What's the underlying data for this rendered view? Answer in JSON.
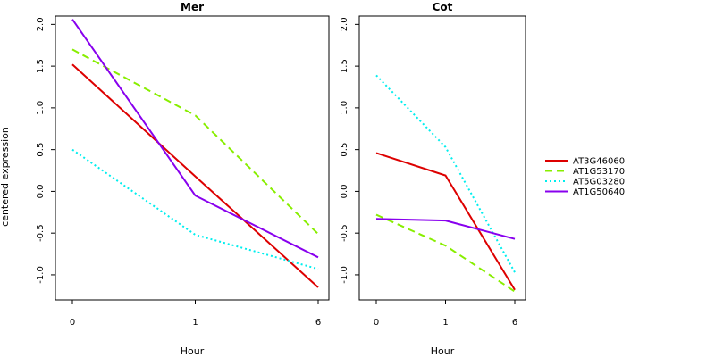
{
  "chart_data": [
    {
      "type": "line",
      "title": "Mer",
      "xlabel": "Hour",
      "ylabel": "centered expression",
      "categories": [
        "0",
        "1",
        "6"
      ],
      "yticks": [
        "-1.0",
        "-0.5",
        "0.0",
        "0.5",
        "1.0",
        "1.5",
        "2.0"
      ],
      "ylim": [
        -1.3,
        2.1
      ],
      "grid": false,
      "series": [
        {
          "name": "AT3G46060",
          "color": "#dd0000",
          "dash": "solid",
          "values": [
            1.52,
            0.18,
            -1.15
          ]
        },
        {
          "name": "AT1G53170",
          "color": "#88ee00",
          "dash": "dashed",
          "values": [
            1.7,
            0.91,
            -0.51
          ]
        },
        {
          "name": "AT5G03280",
          "color": "#00eeee",
          "dash": "dotted",
          "values": [
            0.5,
            -0.52,
            -0.93
          ]
        },
        {
          "name": "AT1G50640",
          "color": "#8800ee",
          "dash": "solid",
          "values": [
            2.06,
            -0.05,
            -0.79
          ]
        }
      ]
    },
    {
      "type": "line",
      "title": "Cot",
      "xlabel": "Hour",
      "ylabel": "",
      "categories": [
        "0",
        "1",
        "6"
      ],
      "yticks": [
        "-1.0",
        "-0.5",
        "0.0",
        "0.5",
        "1.0",
        "1.5",
        "2.0"
      ],
      "ylim": [
        -1.3,
        2.1
      ],
      "grid": false,
      "series": [
        {
          "name": "AT3G46060",
          "color": "#dd0000",
          "dash": "solid",
          "values": [
            0.46,
            0.19,
            -1.18
          ]
        },
        {
          "name": "AT1G53170",
          "color": "#88ee00",
          "dash": "dashed",
          "values": [
            -0.28,
            -0.65,
            -1.2
          ]
        },
        {
          "name": "AT5G03280",
          "color": "#00eeee",
          "dash": "dotted",
          "values": [
            1.39,
            0.53,
            -0.97
          ]
        },
        {
          "name": "AT1G50640",
          "color": "#8800ee",
          "dash": "solid",
          "values": [
            -0.33,
            -0.35,
            -0.57
          ]
        }
      ]
    }
  ],
  "legend": {
    "placement": "right",
    "entries": [
      {
        "name": "AT3G46060",
        "color": "#dd0000",
        "dash": "solid"
      },
      {
        "name": "AT1G53170",
        "color": "#88ee00",
        "dash": "dashed"
      },
      {
        "name": "AT5G03280",
        "color": "#00eeee",
        "dash": "dotted"
      },
      {
        "name": "AT1G50640",
        "color": "#8800ee",
        "dash": "solid"
      }
    ]
  }
}
